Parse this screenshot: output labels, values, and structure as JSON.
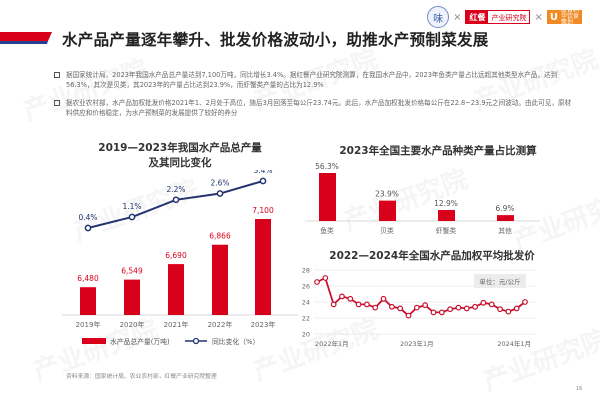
{
  "header": {
    "title": "水产品产量逐年攀升、批发价格波动小，助推水产预制菜发展",
    "accent_colors": {
      "red": "#d9001b",
      "blue": "#2b3d8f"
    },
    "logos": {
      "logo1_glyph": "味",
      "separator": "×",
      "hc_part1": "红餐",
      "hc_part2": "产业研究院",
      "u_glyph": "U",
      "u_text": "联合利华饮食策划"
    }
  },
  "bullets": [
    "据国家统计局，2023年我国水产品总产量达到7,100万吨，同比增长3.4%。据红餐产业研究院测算，在我国水产品中，2023年鱼类产量占比远超其他类型水产品，达到56.3%，其次是贝类，其2023年的产量占比达到23.9%，而虾蟹类产量的占比为12.9%",
    "据农业农村部，水产品加权批发价格2021年1、2月处于高位，随后3月回落至每公斤23.74元。此后，水产品加权批发价格每公斤在22.8~23.9元之间波动。由此可见，原材料供应和价格稳定，为水产预制菜的发展提供了较好的养分"
  ],
  "watermark": "产业研究院",
  "chart_data": [
    {
      "type": "bar",
      "title": "2019—2023年我国水产品总产量及其同比变化",
      "title_line1": "2019—2023年我国水产品总产量",
      "title_line2": "及其同比变化",
      "categories": [
        "2019年",
        "2020年",
        "2021年",
        "2022年",
        "2023年"
      ],
      "series": [
        {
          "name": "水产品总产量(万吨)",
          "type": "bar",
          "color": "#d9001b",
          "values": [
            6480,
            6549,
            6690,
            6866,
            7100
          ],
          "labels": [
            "6,480",
            "6,549",
            "6,690",
            "6,866",
            "7,100"
          ]
        },
        {
          "name": "同比变化（%）",
          "type": "line",
          "color": "#23336e",
          "values": [
            0.4,
            1.1,
            2.2,
            2.6,
            3.4
          ],
          "labels": [
            "0.4%",
            "1.1%",
            "2.2%",
            "2.6%",
            "3.4%"
          ]
        }
      ],
      "legend": {
        "position": "bottom",
        "bar_label": "水产品总产量(万吨)",
        "line_label": "同比变化（%）"
      }
    },
    {
      "type": "bar",
      "title": "2023年全国主要水产品种类产量占比测算",
      "categories": [
        "鱼类",
        "贝类",
        "虾蟹类",
        "其他"
      ],
      "values": [
        56.3,
        23.9,
        12.9,
        6.9
      ],
      "labels": [
        "56.3%",
        "23.9%",
        "12.9%",
        "6.9%"
      ],
      "color": "#d9001b"
    },
    {
      "type": "line",
      "title": "2022—2024年全国水产品加权平均批发价",
      "unit_label": "单位：元/公斤",
      "ylim": [
        20,
        28
      ],
      "yticks": [
        20,
        22,
        24,
        26,
        28
      ],
      "xticks": [
        "2022年1月",
        "2023年1月",
        "2024年1月"
      ],
      "color": "#c8102e",
      "values": [
        26.5,
        27.0,
        23.7,
        24.7,
        24.4,
        23.7,
        23.7,
        23.3,
        24.4,
        23.4,
        23.2,
        22.3,
        23.3,
        23.6,
        22.7,
        22.7,
        23.1,
        23.3,
        23.2,
        23.4,
        23.9,
        23.7,
        23.1,
        22.8,
        23.2,
        24.0
      ]
    }
  ],
  "footer": {
    "source": "资料来源：国家统计局、农业农村部，红餐产业研究院整理",
    "page": "16"
  }
}
